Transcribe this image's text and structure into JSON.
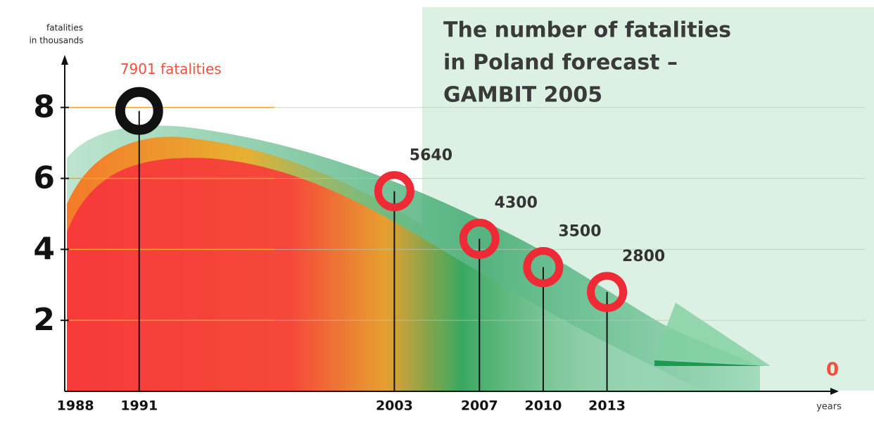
{
  "chart_data": {
    "type": "scatter",
    "title": [
      "The number of fatalities",
      "in Poland forecast –",
      "GAMBIT 2005"
    ],
    "y_label": [
      "fatalities",
      "in thousands"
    ],
    "x_label": "years",
    "x": [
      1991,
      2003,
      2007,
      2010,
      2013
    ],
    "series": [
      {
        "values": [
          7.901,
          5.64,
          4.3,
          3.5,
          2.8
        ],
        "value_labels": [
          "7901 fatalities",
          "5640",
          "4300",
          "3500",
          "2800"
        ],
        "colors": [
          "#111111",
          "#ee2a36",
          "#ee2a36",
          "#ee2a36",
          "#ee2a36"
        ],
        "label_colors": [
          "#f0503c",
          "#333333",
          "#333333",
          "#333333",
          "#333333"
        ]
      }
    ],
    "xlim": [
      1987.5,
      2024
    ],
    "xticks": [
      1988,
      1991,
      2003,
      2007,
      2010,
      2013
    ],
    "ylim": [
      0,
      9.5
    ],
    "yticks": [
      2,
      4,
      6,
      8
    ],
    "grid": true,
    "annotation": "0"
  }
}
